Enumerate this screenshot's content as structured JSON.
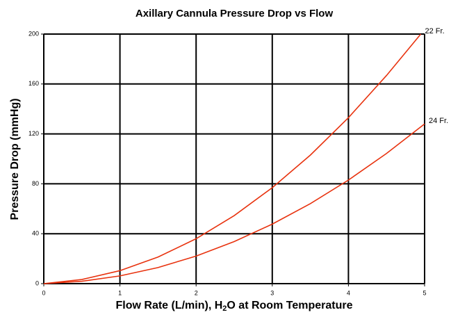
{
  "chart_data": {
    "type": "line",
    "title": "Axillary Cannula Pressure Drop vs Flow",
    "y_label": "Pressure Drop (mmHg)",
    "x_label": {
      "before": "Flow Rate (L/min), H",
      "sub": "2",
      "after": "O at Room Temperature"
    },
    "xlim": [
      0,
      5
    ],
    "xticks": [
      0,
      1,
      2,
      3,
      4,
      5
    ],
    "ylim": [
      0,
      200
    ],
    "yticks": [
      0,
      40,
      80,
      120,
      160,
      200
    ],
    "grid": true,
    "series": [
      {
        "name": "22 Fr.",
        "color": "#e8320e",
        "x": [
          0,
          0.5,
          1,
          1.5,
          2,
          2.5,
          3,
          3.5,
          4,
          4.5,
          4.95
        ],
        "values": [
          0,
          3.3,
          10.4,
          21.3,
          36,
          54.5,
          76.9,
          103,
          133,
          166.8,
          200
        ]
      },
      {
        "name": "24 Fr.",
        "color": "#e8320e",
        "x": [
          0,
          0.5,
          1,
          1.5,
          2,
          2.5,
          3,
          3.5,
          4,
          4.5,
          5
        ],
        "values": [
          0,
          1.9,
          6.2,
          12.9,
          22.1,
          33.7,
          47.7,
          64.1,
          83,
          104.3,
          128
        ]
      }
    ]
  }
}
